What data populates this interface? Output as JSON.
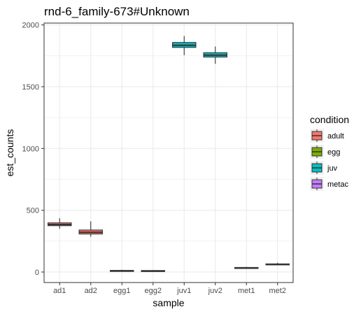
{
  "chart_data": {
    "type": "boxplot",
    "title": "rnd-6_family-673#Unknown",
    "xlabel": "sample",
    "ylabel": "est_counts",
    "ylim": [
      -85,
      2015
    ],
    "yticks": [
      0,
      500,
      1000,
      1500,
      2000
    ],
    "grid": true,
    "legend_position": "right",
    "legend_title": "condition",
    "legend": [
      {
        "label": "adult",
        "color": "#F8766D"
      },
      {
        "label": "egg",
        "color": "#7CAE00"
      },
      {
        "label": "juv",
        "color": "#00BFC4"
      },
      {
        "label": "metac",
        "color": "#C77CFF"
      }
    ],
    "categories": [
      "ad1",
      "ad2",
      "egg1",
      "egg2",
      "juv1",
      "juv2",
      "met1",
      "met2"
    ],
    "boxes": [
      {
        "sample": "ad1",
        "condition": "adult",
        "min": 350,
        "q1": 375,
        "median": 385,
        "q3": 398,
        "max": 435
      },
      {
        "sample": "ad2",
        "condition": "adult",
        "min": 285,
        "q1": 308,
        "median": 322,
        "q3": 340,
        "max": 410
      },
      {
        "sample": "egg1",
        "condition": "egg",
        "min": 5,
        "q1": 8,
        "median": 10,
        "q3": 13,
        "max": 18
      },
      {
        "sample": "egg2",
        "condition": "egg",
        "min": 4,
        "q1": 7,
        "median": 9,
        "q3": 12,
        "max": 15
      },
      {
        "sample": "juv1",
        "condition": "juv",
        "min": 1755,
        "q1": 1818,
        "median": 1835,
        "q3": 1858,
        "max": 1910
      },
      {
        "sample": "juv2",
        "condition": "juv",
        "min": 1685,
        "q1": 1740,
        "median": 1755,
        "q3": 1775,
        "max": 1825
      },
      {
        "sample": "met1",
        "condition": "metac",
        "min": 28,
        "q1": 31,
        "median": 34,
        "q3": 37,
        "max": 42
      },
      {
        "sample": "met2",
        "condition": "metac",
        "min": 55,
        "q1": 58,
        "median": 62,
        "q3": 66,
        "max": 75
      }
    ]
  }
}
